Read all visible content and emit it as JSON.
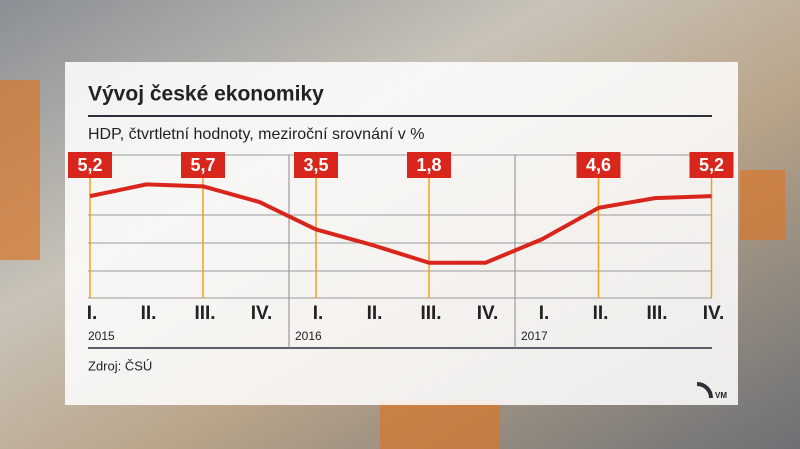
{
  "chart_data": {
    "type": "line",
    "title": "Vývoj české ekonomiky",
    "subtitle": "HDP, čtvrtletní hodnoty, meziroční srovnání v %",
    "categories": [
      "I.",
      "II.",
      "III.",
      "IV.",
      "I.",
      "II.",
      "III.",
      "IV.",
      "I.",
      "II.",
      "III.",
      "IV."
    ],
    "years": [
      "2015",
      "2016",
      "2017"
    ],
    "series": [
      {
        "name": "HDP",
        "color": "#d9261c",
        "values": [
          5.2,
          5.8,
          5.7,
          4.9,
          3.5,
          2.7,
          1.8,
          1.8,
          3.0,
          4.6,
          5.1,
          5.2
        ],
        "value_labels": [
          "5,2",
          null,
          "5,7",
          null,
          "3,5",
          null,
          "1,8",
          null,
          null,
          "4,6",
          null,
          "5,2"
        ]
      }
    ],
    "ylim": [
      0,
      7.3
    ],
    "source": "Zdroj: ČSÚ"
  }
}
